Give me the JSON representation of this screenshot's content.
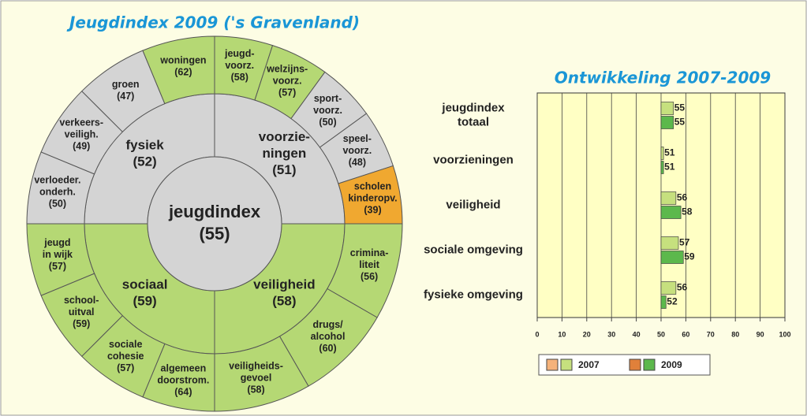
{
  "chart_data": [
    {
      "type": "sunburst",
      "title": "Jeugdindex 2009 ('s Gravenland)",
      "center": {
        "label": [
          "jeugdindex"
        ],
        "value": 55,
        "value_label": "(55)",
        "color": "#d4d4d4"
      },
      "groups": [
        {
          "label": [
            "fysiek"
          ],
          "value": 52,
          "value_label": "(52)",
          "color": "#d4d4d4",
          "children": [
            {
              "label": [
                "verloeder.",
                "onderh."
              ],
              "value": 50,
              "value_label": "(50)",
              "color": "#d4d4d4"
            },
            {
              "label": [
                "verkeers-",
                "veiligh."
              ],
              "value": 49,
              "value_label": "(49)",
              "color": "#d4d4d4"
            },
            {
              "label": [
                "groen"
              ],
              "value": 47,
              "value_label": "(47)",
              "color": "#d4d4d4"
            },
            {
              "label": [
                "woningen"
              ],
              "value": 62,
              "value_label": "(62)",
              "color": "#b5d874"
            }
          ]
        },
        {
          "label": [
            "voorzie-",
            "ningen"
          ],
          "value": 51,
          "value_label": "(51)",
          "color": "#d4d4d4",
          "children": [
            {
              "label": [
                "jeugd-",
                "voorz."
              ],
              "value": 58,
              "value_label": "(58)",
              "color": "#b5d874"
            },
            {
              "label": [
                "welzijns-",
                "voorz."
              ],
              "value": 57,
              "value_label": "(57)",
              "color": "#b5d874"
            },
            {
              "label": [
                "sport-",
                "voorz."
              ],
              "value": 50,
              "value_label": "(50)",
              "color": "#d4d4d4"
            },
            {
              "label": [
                "speel-",
                "voorz."
              ],
              "value": 48,
              "value_label": "(48)",
              "color": "#d4d4d4"
            },
            {
              "label": [
                "scholen",
                "kinderopv."
              ],
              "value": 39,
              "value_label": "(39)",
              "color": "#f0a830"
            }
          ]
        },
        {
          "label": [
            "veiligheid"
          ],
          "value": 58,
          "value_label": "(58)",
          "color": "#b5d874",
          "children": [
            {
              "label": [
                "crimina-",
                "liteit"
              ],
              "value": 56,
              "value_label": "(56)",
              "color": "#b5d874"
            },
            {
              "label": [
                "drugs/",
                "alcohol"
              ],
              "value": 60,
              "value_label": "(60)",
              "color": "#b5d874"
            },
            {
              "label": [
                "veiligheids-",
                "gevoel"
              ],
              "value": 58,
              "value_label": "(58)",
              "color": "#b5d874"
            }
          ]
        },
        {
          "label": [
            "sociaal"
          ],
          "value": 59,
          "value_label": "(59)",
          "color": "#b5d874",
          "children": [
            {
              "label": [
                "algemeen",
                "doorstrom."
              ],
              "value": 64,
              "value_label": "(64)",
              "color": "#b5d874"
            },
            {
              "label": [
                "sociale",
                "cohesie"
              ],
              "value": 57,
              "value_label": "(57)",
              "color": "#b5d874"
            },
            {
              "label": [
                "school-",
                "uitval"
              ],
              "value": 59,
              "value_label": "(59)",
              "color": "#b5d874"
            },
            {
              "label": [
                "jeugd",
                "in wijk"
              ],
              "value": 57,
              "value_label": "(57)",
              "color": "#b5d874"
            }
          ]
        }
      ]
    },
    {
      "type": "hbar",
      "title": "Ontwikkeling 2007-2009",
      "categories": [
        [
          "jeugdindex",
          "totaal"
        ],
        [
          "voorzieningen"
        ],
        [
          "veiligheid"
        ],
        [
          "sociale omgeving"
        ],
        [
          "fysieke omgeving"
        ]
      ],
      "series": [
        {
          "name": "2007",
          "color": "#c6e07e",
          "alt_color": "#f5b27a",
          "values": [
            55,
            51,
            56,
            57,
            56
          ]
        },
        {
          "name": "2009",
          "color": "#5cb84c",
          "alt_color": "#e0803a",
          "values": [
            55,
            51,
            58,
            59,
            52
          ]
        }
      ],
      "base": 50,
      "xlim": [
        0,
        100
      ],
      "xticks": [
        0,
        10,
        20,
        30,
        40,
        50,
        60,
        70,
        80,
        90,
        100
      ],
      "grid": true
    }
  ]
}
